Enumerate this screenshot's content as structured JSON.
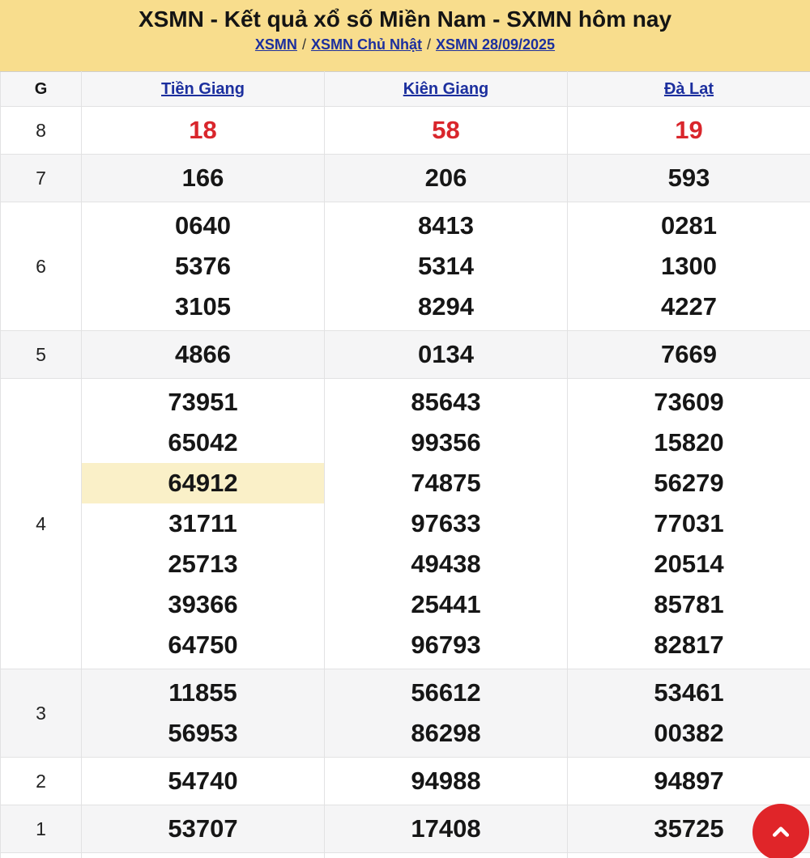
{
  "header": {
    "title": "XSMN - Kết quả xổ số Miền Nam - SXMN hôm nay",
    "breadcrumb": [
      {
        "label": "XSMN"
      },
      {
        "label": "XSMN Chủ Nhật"
      },
      {
        "label": "XSMN 28/09/2025"
      }
    ],
    "separator": "/"
  },
  "table": {
    "g_header": "G",
    "columns": [
      "Tiền Giang",
      "Kiên Giang",
      "Đà Lạt"
    ],
    "rows": [
      {
        "g": "8",
        "red": true,
        "cells": [
          [
            "18"
          ],
          [
            "58"
          ],
          [
            "19"
          ]
        ]
      },
      {
        "g": "7",
        "red": false,
        "cells": [
          [
            "166"
          ],
          [
            "206"
          ],
          [
            "593"
          ]
        ]
      },
      {
        "g": "6",
        "red": false,
        "cells": [
          [
            "0640",
            "5376",
            "3105"
          ],
          [
            "8413",
            "5314",
            "8294"
          ],
          [
            "0281",
            "1300",
            "4227"
          ]
        ]
      },
      {
        "g": "5",
        "red": false,
        "cells": [
          [
            "4866"
          ],
          [
            "0134"
          ],
          [
            "7669"
          ]
        ]
      },
      {
        "g": "4",
        "red": false,
        "cells": [
          [
            "73951",
            "65042",
            "64912",
            "31711",
            "25713",
            "39366",
            "64750"
          ],
          [
            "85643",
            "99356",
            "74875",
            "97633",
            "49438",
            "25441",
            "96793"
          ],
          [
            "73609",
            "15820",
            "56279",
            "77031",
            "20514",
            "85781",
            "82817"
          ]
        ]
      },
      {
        "g": "3",
        "red": false,
        "cells": [
          [
            "11855",
            "56953"
          ],
          [
            "56612",
            "86298"
          ],
          [
            "53461",
            "00382"
          ]
        ]
      },
      {
        "g": "2",
        "red": false,
        "cells": [
          [
            "54740"
          ],
          [
            "94988"
          ],
          [
            "94897"
          ]
        ]
      },
      {
        "g": "1",
        "red": false,
        "cells": [
          [
            "53707"
          ],
          [
            "17408"
          ],
          [
            "35725"
          ]
        ]
      }
    ],
    "highlight": {
      "row_g": "4",
      "column_index": 0,
      "value": "64912"
    }
  },
  "scroll_top_button": {
    "icon": "chevron-up"
  },
  "colors": {
    "header_bg": "#f8dd8d",
    "link_blue": "#1c2f9e",
    "prize_red": "#d9262c",
    "highlight_bg": "#faf0c8",
    "row_alt_bg": "#f5f5f6",
    "scroll_button_red": "#e02529"
  }
}
